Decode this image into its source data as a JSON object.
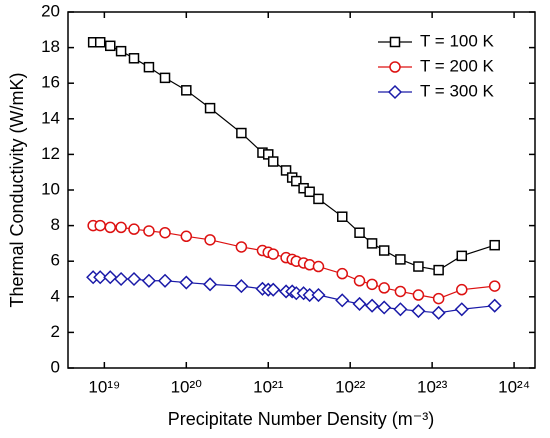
{
  "chart_data": {
    "type": "line",
    "xlabel": "Precipitate Number Density (m⁻³)",
    "ylabel": "Thermal Conductivity (W/mK)",
    "x": [
      7.3e+18,
      8.9e+18,
      1.18e+19,
      1.6e+19,
      2.3e+19,
      3.5e+19,
      5.5e+19,
      1e+20,
      1.95e+20,
      4.7e+20,
      8.5e+20,
      1e+21,
      1.15e+21,
      1.65e+21,
      1.96e+21,
      2.2e+21,
      2.7e+21,
      3.2e+21,
      4.1e+21,
      8e+21,
      1.3e+22,
      1.85e+22,
      2.6e+22,
      4.1e+22,
      6.8e+22,
      1.2e+23,
      2.3e+23,
      5.8e+23
    ],
    "series": [
      {
        "name": "T = 100 K",
        "color": "#000000",
        "marker": "square",
        "values": [
          18.3,
          18.3,
          18.1,
          17.8,
          17.4,
          16.9,
          16.3,
          15.6,
          14.6,
          13.2,
          12.1,
          12.0,
          11.6,
          11.1,
          10.7,
          10.5,
          10.1,
          9.9,
          9.5,
          8.5,
          7.6,
          7.0,
          6.6,
          6.1,
          5.7,
          5.5,
          6.3,
          6.9
        ]
      },
      {
        "name": "T = 200 K",
        "color": "#dd1111",
        "marker": "circle",
        "values": [
          8.0,
          8.0,
          7.9,
          7.9,
          7.8,
          7.7,
          7.6,
          7.4,
          7.2,
          6.8,
          6.6,
          6.5,
          6.4,
          6.2,
          6.1,
          6.0,
          5.9,
          5.8,
          5.7,
          5.3,
          4.9,
          4.7,
          4.5,
          4.3,
          4.1,
          3.9,
          4.4,
          4.6
        ]
      },
      {
        "name": "T = 300 K",
        "color": "#1a1aa8",
        "marker": "diamond",
        "values": [
          5.1,
          5.1,
          5.1,
          5.0,
          5.0,
          4.9,
          4.9,
          4.8,
          4.7,
          4.6,
          4.45,
          4.4,
          4.4,
          4.3,
          4.3,
          4.2,
          4.2,
          4.1,
          4.1,
          3.8,
          3.6,
          3.5,
          3.4,
          3.3,
          3.2,
          3.1,
          3.3,
          3.5
        ]
      }
    ],
    "xscale": "log",
    "xlim": [
      3.6e+18,
      1.8e+24
    ],
    "xticks": [
      {
        "value": 1e+19,
        "label": "10¹⁹"
      },
      {
        "value": 1e+20,
        "label": "10²⁰"
      },
      {
        "value": 1e+21,
        "label": "10²¹"
      },
      {
        "value": 1e+22,
        "label": "10²²"
      },
      {
        "value": 1e+23,
        "label": "10²³"
      },
      {
        "value": 1e+24,
        "label": "10²⁴"
      }
    ],
    "ylim": [
      0,
      20
    ],
    "yticks": [
      0,
      2,
      4,
      6,
      8,
      10,
      12,
      14,
      16,
      18,
      20
    ],
    "legend": "upper right"
  }
}
